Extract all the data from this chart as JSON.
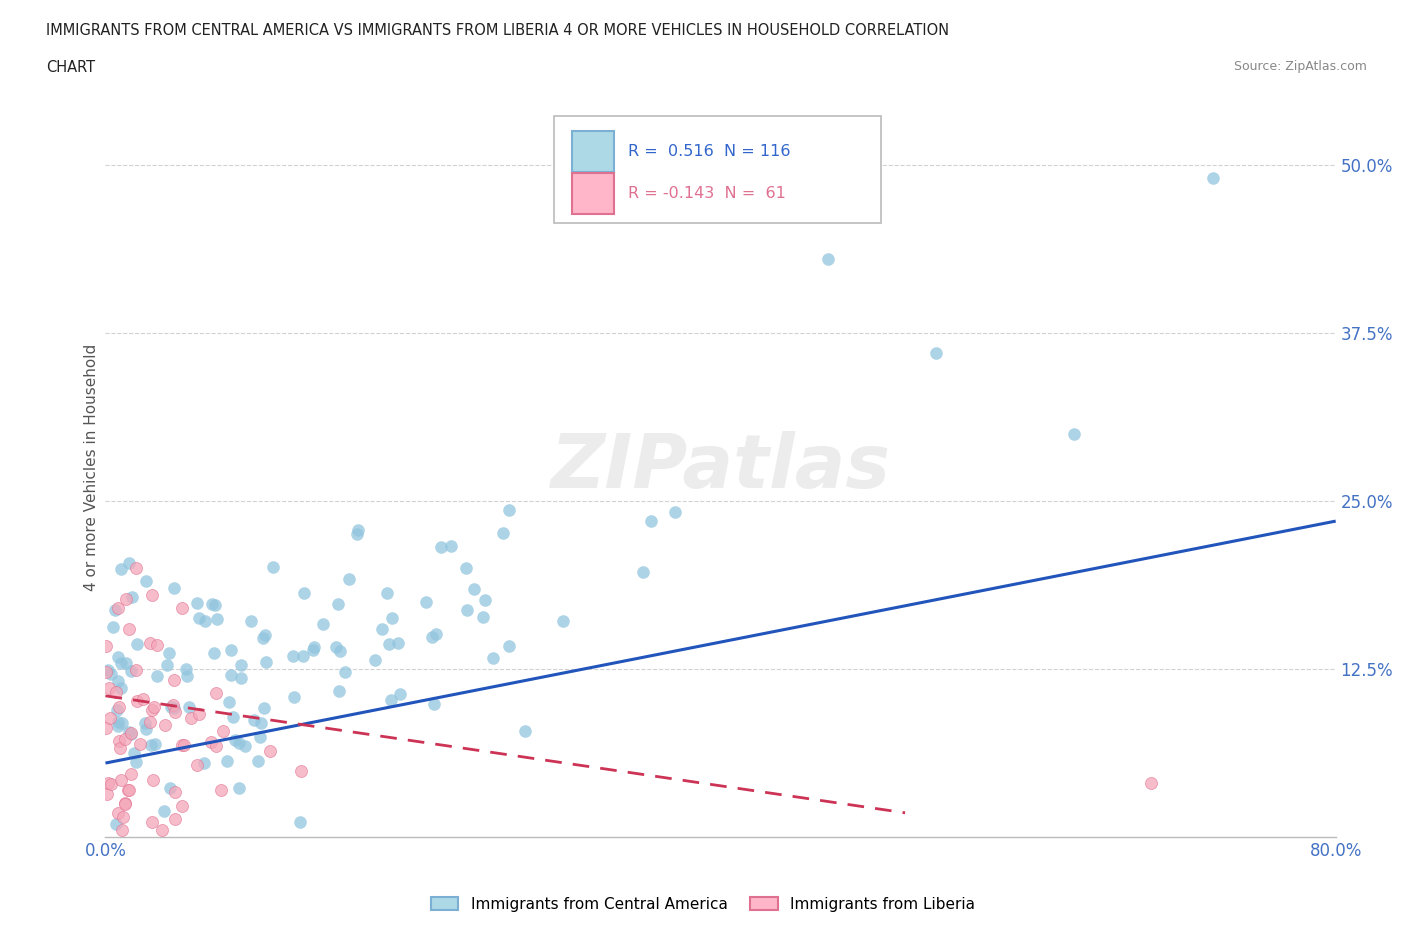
{
  "title_line1": "IMMIGRANTS FROM CENTRAL AMERICA VS IMMIGRANTS FROM LIBERIA 4 OR MORE VEHICLES IN HOUSEHOLD CORRELATION",
  "title_line2": "CHART",
  "source": "Source: ZipAtlas.com",
  "ylabel": "4 or more Vehicles in Household",
  "xlim": [
    0.0,
    0.8
  ],
  "ylim": [
    0.0,
    0.55
  ],
  "ytick_vals": [
    0.0,
    0.125,
    0.25,
    0.375,
    0.5
  ],
  "ytick_labels": [
    "",
    "12.5%",
    "25.0%",
    "37.5%",
    "50.0%"
  ],
  "xtick_vals": [
    0.0,
    0.1,
    0.2,
    0.3,
    0.4,
    0.5,
    0.6,
    0.7,
    0.8
  ],
  "xtick_labels": [
    "0.0%",
    "",
    "",
    "",
    "",
    "",
    "",
    "",
    "80.0%"
  ],
  "R_blue": 0.516,
  "N_blue": 116,
  "R_pink": -0.143,
  "N_pink": 61,
  "color_blue": "#92C5DE",
  "color_pink": "#F4A6B8",
  "color_blue_line": "#2255BB",
  "color_pink_line": "#CC3355",
  "legend_label_blue": "Immigrants from Central America",
  "legend_label_pink": "Immigrants from Liberia",
  "watermark": "ZIPatlas",
  "blue_trend_x0": 0.0,
  "blue_trend_x1": 0.8,
  "blue_trend_y0": 0.055,
  "blue_trend_y1": 0.235,
  "pink_trend_x0": 0.0,
  "pink_trend_x1": 0.52,
  "pink_trend_y0": 0.105,
  "pink_trend_y1": 0.018,
  "background_color": "#ffffff",
  "grid_color": "#cccccc",
  "tick_color": "#4472c4",
  "title_color": "#222222",
  "source_color": "#888888"
}
